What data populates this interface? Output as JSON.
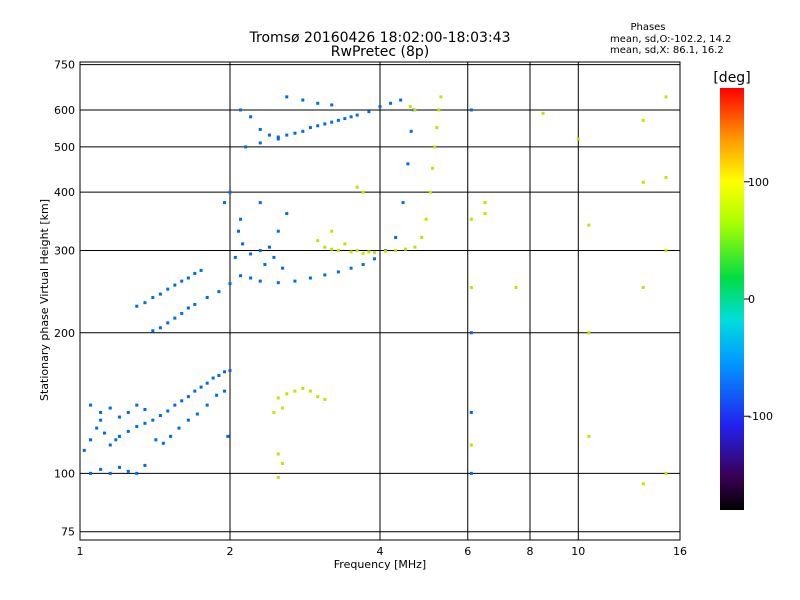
{
  "chart_data": {
    "type": "scatter",
    "title": "Tromsø 20160426 18:02:00-18:03:43",
    "subtitle": "RwPretec (8p)",
    "xlabel": "Frequency [MHz]",
    "ylabel": "Stationary phase Virtual Height [km]",
    "x_scale": "log",
    "y_scale": "log",
    "xlim": [
      1,
      16
    ],
    "ylim": [
      72,
      760
    ],
    "xticks": [
      1,
      2,
      4,
      6,
      8,
      10,
      16
    ],
    "yticks": [
      75,
      100,
      200,
      300,
      400,
      500,
      600,
      750
    ],
    "grid": true,
    "stats": {
      "heading": "Phases",
      "line_o": "mean, sd,O:-102.2, 14.2",
      "line_x": "mean, sd,X:  86.1, 16.2"
    },
    "colorbar": {
      "label": "[deg]",
      "range": [
        -180,
        180
      ],
      "ticks": [
        100,
        0,
        -100
      ],
      "colormap": "rainbow"
    },
    "series": [
      {
        "mode": "O",
        "mean_phase": -102.2,
        "points": [
          [
            1.02,
            112
          ],
          [
            1.05,
            118
          ],
          [
            1.08,
            125
          ],
          [
            1.1,
            130
          ],
          [
            1.12,
            122
          ],
          [
            1.15,
            115
          ],
          [
            1.18,
            118
          ],
          [
            1.2,
            120
          ],
          [
            1.25,
            123
          ],
          [
            1.3,
            126
          ],
          [
            1.35,
            128
          ],
          [
            1.4,
            130
          ],
          [
            1.45,
            133
          ],
          [
            1.5,
            136
          ],
          [
            1.55,
            140
          ],
          [
            1.6,
            143
          ],
          [
            1.65,
            146
          ],
          [
            1.7,
            150
          ],
          [
            1.75,
            153
          ],
          [
            1.8,
            156
          ],
          [
            1.85,
            160
          ],
          [
            1.9,
            162
          ],
          [
            1.95,
            165
          ],
          [
            2.0,
            166
          ],
          [
            1.05,
            100
          ],
          [
            1.1,
            102
          ],
          [
            1.15,
            100
          ],
          [
            1.2,
            103
          ],
          [
            1.25,
            101
          ],
          [
            1.3,
            100
          ],
          [
            1.35,
            104
          ],
          [
            1.05,
            140
          ],
          [
            1.1,
            135
          ],
          [
            1.15,
            138
          ],
          [
            1.2,
            132
          ],
          [
            1.25,
            135
          ],
          [
            1.3,
            140
          ],
          [
            1.35,
            137
          ],
          [
            1.42,
            118
          ],
          [
            1.47,
            116
          ],
          [
            1.52,
            120
          ],
          [
            1.58,
            125
          ],
          [
            1.65,
            130
          ],
          [
            1.72,
            134
          ],
          [
            1.8,
            140
          ],
          [
            1.88,
            147
          ],
          [
            1.95,
            150
          ],
          [
            1.98,
            120
          ],
          [
            1.3,
            228
          ],
          [
            1.35,
            232
          ],
          [
            1.4,
            238
          ],
          [
            1.45,
            242
          ],
          [
            1.5,
            248
          ],
          [
            1.55,
            253
          ],
          [
            1.6,
            258
          ],
          [
            1.65,
            262
          ],
          [
            1.7,
            268
          ],
          [
            1.75,
            272
          ],
          [
            1.4,
            202
          ],
          [
            1.45,
            205
          ],
          [
            1.5,
            210
          ],
          [
            1.55,
            215
          ],
          [
            1.6,
            220
          ],
          [
            1.65,
            226
          ],
          [
            1.7,
            230
          ],
          [
            1.8,
            238
          ],
          [
            1.9,
            245
          ],
          [
            2.0,
            255
          ],
          [
            2.05,
            290
          ],
          [
            2.08,
            330
          ],
          [
            2.1,
            350
          ],
          [
            2.12,
            310
          ],
          [
            2.0,
            400
          ],
          [
            1.95,
            380
          ],
          [
            2.1,
            265
          ],
          [
            2.2,
            262
          ],
          [
            2.3,
            258
          ],
          [
            2.5,
            256
          ],
          [
            2.7,
            258
          ],
          [
            2.9,
            262
          ],
          [
            3.1,
            266
          ],
          [
            3.3,
            270
          ],
          [
            3.5,
            275
          ],
          [
            3.7,
            280
          ],
          [
            3.9,
            288
          ],
          [
            4.1,
            300
          ],
          [
            4.3,
            320
          ],
          [
            4.45,
            380
          ],
          [
            4.55,
            460
          ],
          [
            4.62,
            540
          ],
          [
            4.68,
            600
          ],
          [
            2.2,
            295
          ],
          [
            2.3,
            300
          ],
          [
            2.4,
            305
          ],
          [
            2.5,
            330
          ],
          [
            2.6,
            360
          ],
          [
            2.3,
            380
          ],
          [
            2.35,
            280
          ],
          [
            2.45,
            290
          ],
          [
            2.55,
            275
          ],
          [
            2.1,
            600
          ],
          [
            2.2,
            580
          ],
          [
            2.3,
            545
          ],
          [
            2.4,
            530
          ],
          [
            2.5,
            525
          ],
          [
            2.6,
            530
          ],
          [
            2.8,
            540
          ],
          [
            3.0,
            555
          ],
          [
            3.2,
            565
          ],
          [
            3.4,
            575
          ],
          [
            3.6,
            585
          ],
          [
            3.8,
            595
          ],
          [
            4.0,
            610
          ],
          [
            4.2,
            620
          ],
          [
            4.4,
            630
          ],
          [
            2.15,
            500
          ],
          [
            2.3,
            510
          ],
          [
            2.5,
            520
          ],
          [
            2.7,
            535
          ],
          [
            2.9,
            550
          ],
          [
            3.1,
            560
          ],
          [
            3.3,
            570
          ],
          [
            3.5,
            580
          ],
          [
            2.6,
            640
          ],
          [
            2.8,
            630
          ],
          [
            3.0,
            620
          ],
          [
            3.2,
            615
          ],
          [
            6.1,
            600
          ],
          [
            6.1,
            200
          ],
          [
            6.1,
            135
          ],
          [
            6.1,
            100
          ]
        ]
      },
      {
        "mode": "X",
        "mean_phase": 86.1,
        "points": [
          [
            2.5,
            145
          ],
          [
            2.6,
            148
          ],
          [
            2.7,
            150
          ],
          [
            2.8,
            152
          ],
          [
            2.9,
            150
          ],
          [
            3.0,
            146
          ],
          [
            3.1,
            144
          ],
          [
            2.45,
            135
          ],
          [
            2.55,
            138
          ],
          [
            2.5,
            110
          ],
          [
            2.55,
            105
          ],
          [
            2.5,
            98
          ],
          [
            3.0,
            315
          ],
          [
            3.1,
            305
          ],
          [
            3.2,
            302
          ],
          [
            3.3,
            300
          ],
          [
            3.5,
            298
          ],
          [
            3.7,
            296
          ],
          [
            3.9,
            297
          ],
          [
            4.1,
            299
          ],
          [
            4.3,
            300
          ],
          [
            4.5,
            302
          ],
          [
            4.7,
            305
          ],
          [
            4.85,
            320
          ],
          [
            4.95,
            350
          ],
          [
            5.05,
            400
          ],
          [
            5.1,
            450
          ],
          [
            5.15,
            500
          ],
          [
            5.2,
            550
          ],
          [
            5.25,
            600
          ],
          [
            5.3,
            640
          ],
          [
            3.2,
            330
          ],
          [
            3.4,
            310
          ],
          [
            3.6,
            300
          ],
          [
            3.8,
            298
          ],
          [
            4.6,
            610
          ],
          [
            4.7,
            600
          ],
          [
            3.6,
            410
          ],
          [
            3.7,
            400
          ],
          [
            6.1,
            350
          ],
          [
            6.1,
            250
          ],
          [
            6.1,
            115
          ],
          [
            10.0,
            520
          ],
          [
            10.5,
            200
          ],
          [
            10.5,
            340
          ],
          [
            10.5,
            120
          ],
          [
            13.5,
            570
          ],
          [
            13.5,
            420
          ],
          [
            13.5,
            250
          ],
          [
            13.5,
            95
          ],
          [
            15.0,
            640
          ],
          [
            15.0,
            430
          ],
          [
            15.0,
            300
          ],
          [
            15.0,
            100
          ],
          [
            8.5,
            590
          ],
          [
            7.5,
            250
          ],
          [
            6.5,
            380
          ],
          [
            6.5,
            360
          ]
        ]
      }
    ]
  }
}
